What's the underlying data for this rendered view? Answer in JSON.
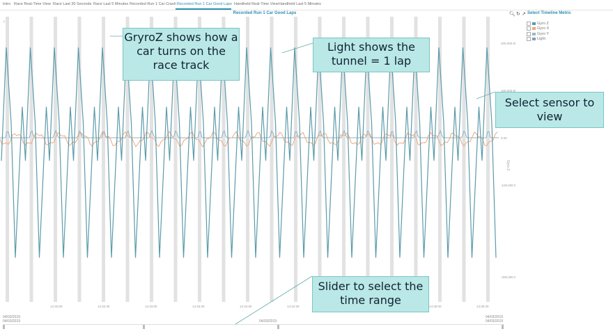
{
  "tabs": [
    {
      "label": "Intro",
      "active": false
    },
    {
      "label": "Race Real-Time View",
      "active": false
    },
    {
      "label": "Race Last 30 Seconds",
      "active": false
    },
    {
      "label": "Race Last 5 Minutes",
      "active": false
    },
    {
      "label": "Recorded Run 1 Car Crash",
      "active": false
    },
    {
      "label": "Recorded Run 1 Car Good Laps",
      "active": true
    },
    {
      "label": "Handheld Real-Time View",
      "active": false
    },
    {
      "label": "Handheld Last 5 Minutes",
      "active": false
    }
  ],
  "chart": {
    "title": "Recorded Run 1 Car Good Laps",
    "select_metric_label": "Select Timeline Metric",
    "y_axis_title": "Gyro Z",
    "y_ticks": [
      "200,000.00",
      "100,000.00",
      "0.00",
      "-100,000.00",
      "-200,000.00"
    ],
    "x_ticks": [
      "14:32:00",
      "14:32:30",
      "14:33:00",
      "14:33:30",
      "14:34:00",
      "14:34:30",
      "14:35:00",
      "14:35:30",
      "14:36:00",
      "14:36:30"
    ],
    "x_date_start": "04/03/2019",
    "x_date_end": "04/03/2019",
    "slider_dates": [
      "04/03/2019",
      "04/03/2019",
      "04/03/2019"
    ]
  },
  "legend": [
    {
      "label": "Gyro Z",
      "color": "#5b9aaa",
      "checked": true
    },
    {
      "label": "Gyro X",
      "color": "#f0a77d",
      "checked": true
    },
    {
      "label": "Gyro Y",
      "color": "#9fb4c8",
      "checked": true
    },
    {
      "label": "Light",
      "color": "#7f9fbf",
      "checked": true
    }
  ],
  "callouts": [
    {
      "text": "GryroZ shows how a car turns on the race track"
    },
    {
      "text": "Light shows the tunnel = 1 lap"
    },
    {
      "text": "Select sensor to view"
    },
    {
      "text": "Slider to select the time range"
    }
  ],
  "colors": {
    "gyro_z": "#5b9aaa",
    "gyro_x": "#f0a77d",
    "light": "#8fb0c0",
    "lap_band": "#e2e2e2",
    "callout_bg": "#b9e8e6",
    "accent": "#2e8fb0"
  },
  "icons": [
    "search-icon",
    "refresh-icon",
    "export-icon",
    "zoom-in-icon",
    "zoom-out-icon"
  ]
}
